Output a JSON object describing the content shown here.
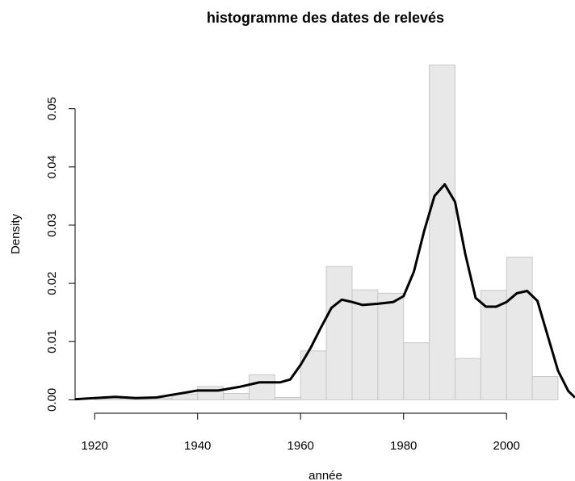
{
  "chart_data": {
    "type": "histogram",
    "title": "histogramme des dates de relevés",
    "xlabel": "année",
    "ylabel": "Density",
    "bins": [
      1920,
      1925,
      1930,
      1935,
      1940,
      1945,
      1950,
      1955,
      1960,
      1965,
      1970,
      1975,
      1980,
      1985,
      1990,
      1995,
      2000,
      2005,
      2010
    ],
    "values": [
      0.0004,
      0.0003,
      0.0003,
      0.001,
      0.0023,
      0.0011,
      0.0043,
      0.0004,
      0.0084,
      0.0229,
      0.0189,
      0.0183,
      0.0098,
      0.0575,
      0.0071,
      0.0188,
      0.0245,
      0.004
    ],
    "color": "#e8e8e8",
    "edgecolor": "#c8c8c8",
    "density": {
      "color": "#000000",
      "x": [
        1916.2,
        1920,
        1924,
        1928,
        1932,
        1936,
        1940,
        1944,
        1948,
        1952,
        1956,
        1958,
        1960,
        1962,
        1964,
        1966,
        1968,
        1970,
        1972,
        1975,
        1978,
        1980,
        1982,
        1984,
        1986,
        1988,
        1990,
        1992,
        1994,
        1996,
        1998,
        2000,
        2002,
        2004,
        2006,
        2008,
        2010,
        2012,
        2013.3
      ],
      "values": [
        0.0001,
        0.0003,
        0.0005,
        0.0003,
        0.0004,
        0.001,
        0.0016,
        0.0016,
        0.0022,
        0.003,
        0.003,
        0.0035,
        0.006,
        0.009,
        0.0125,
        0.0158,
        0.0172,
        0.0168,
        0.0163,
        0.0165,
        0.0168,
        0.0178,
        0.022,
        0.029,
        0.035,
        0.037,
        0.034,
        0.025,
        0.0175,
        0.016,
        0.016,
        0.0168,
        0.0183,
        0.0187,
        0.017,
        0.011,
        0.005,
        0.0015,
        0.0004
      ]
    },
    "xlim": [
      1916.2,
      2013.3
    ],
    "ylim": [
      -0.0023,
      0.0598
    ],
    "xticks": [
      1920,
      1940,
      1960,
      1980,
      2000
    ],
    "yticks": [
      {
        "value": 0,
        "label": "0.00"
      },
      0.01,
      0.02,
      0.03,
      0.04,
      0.05
    ]
  }
}
